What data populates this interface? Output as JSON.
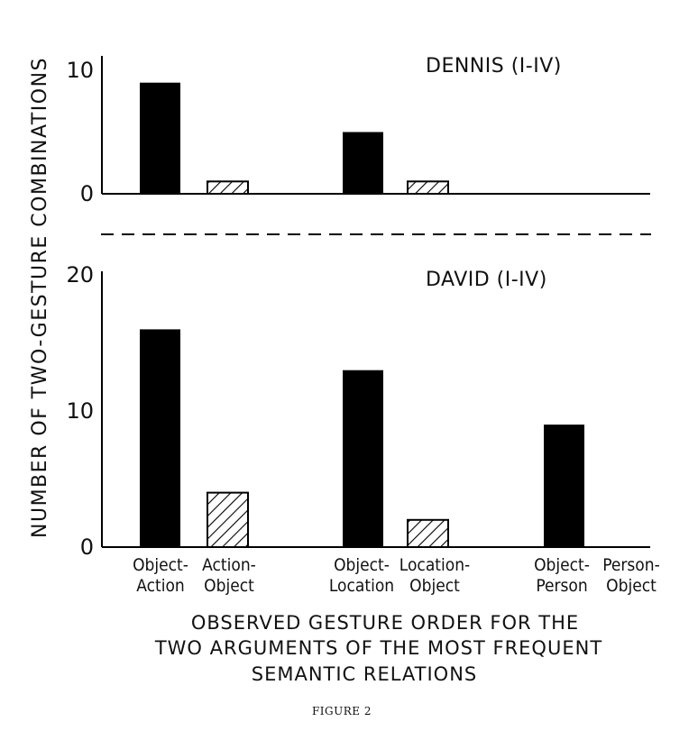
{
  "chart_data": [
    {
      "type": "bar",
      "title": "DENNIS (I-IV)",
      "ylim": [
        0,
        10
      ],
      "y_ticks": [
        "0",
        "10"
      ],
      "categories": [
        "Object-Action",
        "Action-Object",
        "Object-Location",
        "Location-Object",
        "Object-Person",
        "Person-Object"
      ],
      "values": [
        9,
        1,
        5,
        1,
        0,
        0
      ],
      "fill": [
        "solid",
        "hatched",
        "solid",
        "hatched",
        "solid",
        "hatched"
      ]
    },
    {
      "type": "bar",
      "title": "DAVID (I-IV)",
      "ylim": [
        0,
        20
      ],
      "y_ticks": [
        "0",
        "10",
        "20"
      ],
      "categories": [
        "Object-Action",
        "Action-Object",
        "Object-Location",
        "Location-Object",
        "Object-Person",
        "Person-Object"
      ],
      "values": [
        16,
        4,
        13,
        2,
        9,
        0
      ],
      "fill": [
        "solid",
        "hatched",
        "solid",
        "hatched",
        "solid",
        "hatched"
      ]
    }
  ],
  "ylabel": "NUMBER OF TWO-GESTURE COMBINATIONS",
  "category_labels": [
    [
      "Object-",
      "Action"
    ],
    [
      "Action-",
      "Object"
    ],
    [
      "Object-",
      "Location"
    ],
    [
      "Location-",
      "Object"
    ],
    [
      "Object-",
      "Person"
    ],
    [
      "Person-",
      "Object"
    ]
  ],
  "xlabel": [
    "OBSERVED GESTURE ORDER FOR THE",
    "TWO ARGUMENTS OF THE MOST FREQUENT",
    "SEMANTIC RELATIONS"
  ],
  "caption": "FIGURE 2",
  "colors": {
    "bar_solid": "#000000",
    "ink": "#111111"
  }
}
